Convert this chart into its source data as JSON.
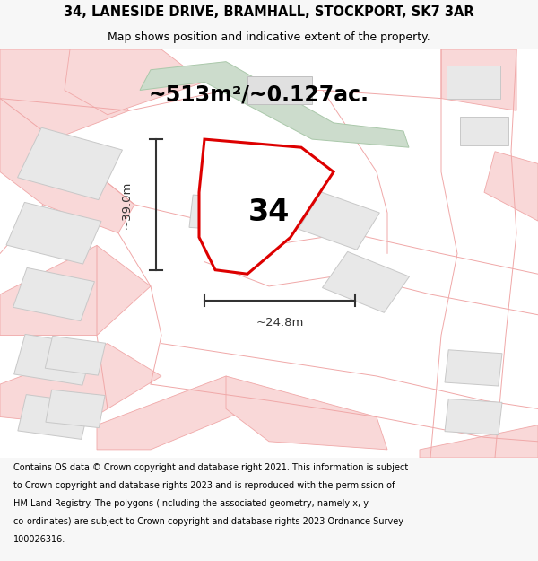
{
  "title_line1": "34, LANESIDE DRIVE, BRAMHALL, STOCKPORT, SK7 3AR",
  "title_line2": "Map shows position and indicative extent of the property.",
  "area_text": "~513m²/~0.127ac.",
  "number_label": "34",
  "dim_vertical": "~39.0m",
  "dim_horizontal": "~24.8m",
  "footer_lines": [
    "Contains OS data © Crown copyright and database right 2021. This information is subject",
    "to Crown copyright and database rights 2023 and is reproduced with the permission of",
    "HM Land Registry. The polygons (including the associated geometry, namely x, y",
    "co-ordinates) are subject to Crown copyright and database rights 2023 Ordnance Survey",
    "100026316."
  ],
  "bg_color": "#f7f7f7",
  "map_bg": "#ffffff",
  "road_color": "#f9d8d8",
  "road_stroke": "#f0a8a8",
  "building_fill": "#e8e8e8",
  "building_stroke": "#c8c8c8",
  "green_fill": "#ccdccc",
  "green_stroke": "#aac8aa",
  "plot_fill": "#ffffff",
  "plot_stroke": "#dd0000",
  "dim_color": "#333333",
  "text_color": "#000000",
  "title_fontsize": 10.5,
  "subtitle_fontsize": 9.0,
  "area_fontsize": 17.0,
  "number_fontsize": 24.0,
  "dim_fontsize": 9.5,
  "footer_fontsize": 7.0
}
